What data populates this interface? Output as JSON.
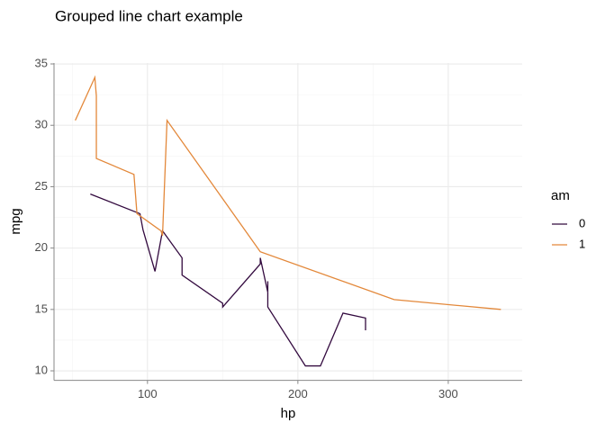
{
  "chart_data": {
    "type": "line",
    "title": "Grouped line chart example",
    "x_label": "hp",
    "y_label": "mpg",
    "legend_title": "am",
    "series": [
      {
        "name": "0",
        "color": "#330a3f",
        "x": [
          62,
          95,
          97,
          105,
          110,
          123,
          123,
          150,
          150,
          175,
          175,
          180,
          180,
          180,
          205,
          215,
          230,
          245,
          245
        ],
        "values": [
          24.4,
          22.8,
          21.5,
          18.1,
          21.4,
          19.2,
          17.8,
          15.5,
          15.2,
          18.7,
          19.2,
          16.4,
          17.3,
          15.2,
          10.4,
          10.4,
          14.7,
          14.3,
          13.3
        ]
      },
      {
        "name": "1",
        "color": "#e3883a",
        "x": [
          52,
          65,
          66,
          66,
          91,
          93,
          109,
          110,
          110,
          113,
          175,
          264,
          335
        ],
        "values": [
          30.4,
          33.9,
          32.4,
          27.3,
          26,
          22.8,
          21.4,
          21,
          21,
          30.4,
          19.7,
          15.8,
          15
        ]
      }
    ],
    "xlim": [
      37.85,
      349.15
    ],
    "xticks": [
      100,
      200,
      300
    ],
    "ylim": [
      9.225,
      35.075
    ],
    "yticks": [
      10,
      15,
      20,
      25,
      30,
      35
    ],
    "grid": true,
    "legend_position": "right"
  }
}
